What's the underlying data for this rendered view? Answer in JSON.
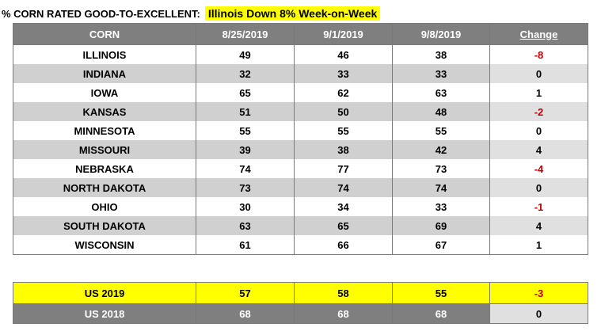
{
  "title": {
    "prefix": "% CORN RATED GOOD-TO-EXCELLENT:",
    "highlight": "Illinois Down 8% Week-on-Week"
  },
  "colors": {
    "header_gray": "#7f7f7f",
    "row_gray": "#d0d0d0",
    "highlight_yellow": "#ffff00",
    "negative_red": "#c00000"
  },
  "chart_data": {
    "type": "table",
    "columns": [
      "CORN",
      "8/25/2019",
      "9/1/2019",
      "9/8/2019",
      "Change"
    ],
    "rows": [
      [
        "ILLINOIS",
        "49",
        "46",
        "38",
        "-8"
      ],
      [
        "INDIANA",
        "32",
        "33",
        "33",
        "0"
      ],
      [
        "IOWA",
        "65",
        "62",
        "63",
        "1"
      ],
      [
        "KANSAS",
        "51",
        "50",
        "48",
        "-2"
      ],
      [
        "MINNESOTA",
        "55",
        "55",
        "55",
        "0"
      ],
      [
        "MISSOURI",
        "39",
        "38",
        "42",
        "4"
      ],
      [
        "NEBRASKA",
        "74",
        "77",
        "73",
        "-4"
      ],
      [
        "NORTH DAKOTA",
        "73",
        "74",
        "74",
        "0"
      ],
      [
        "OHIO",
        "30",
        "34",
        "33",
        "-1"
      ],
      [
        "SOUTH DAKOTA",
        "63",
        "65",
        "69",
        "4"
      ],
      [
        "WISCONSIN",
        "61",
        "66",
        "67",
        "1"
      ]
    ],
    "summary_rows": [
      [
        "US 2019",
        "57",
        "58",
        "55",
        "-3"
      ],
      [
        "US 2018",
        "68",
        "68",
        "68",
        "0"
      ]
    ]
  }
}
